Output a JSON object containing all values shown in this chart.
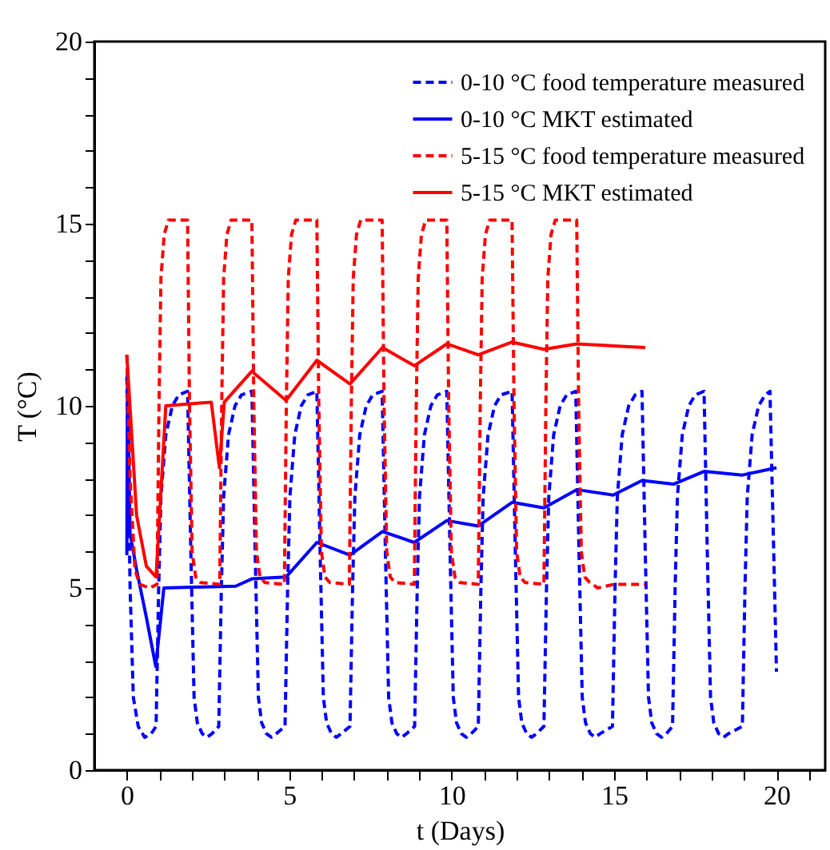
{
  "chart_data": {
    "type": "line",
    "xlabel": "t (Days)",
    "ylabel": "T (°C)",
    "xlim": [
      -1,
      21.5
    ],
    "ylim": [
      0,
      20
    ],
    "xticks": [
      0,
      {
        "value": 1,
        "label": null
      },
      {
        "value": 2,
        "label": null
      },
      {
        "value": 3,
        "label": null
      },
      {
        "value": 4,
        "label": null
      },
      5,
      {
        "value": 6,
        "label": null
      },
      {
        "value": 7,
        "label": null
      },
      {
        "value": 8,
        "label": null
      },
      {
        "value": 9,
        "label": null
      },
      10,
      {
        "value": 11,
        "label": null
      },
      {
        "value": 12,
        "label": null
      },
      {
        "value": 13,
        "label": null
      },
      {
        "value": 14,
        "label": null
      },
      15,
      {
        "value": 16,
        "label": null
      },
      {
        "value": 17,
        "label": null
      },
      {
        "value": 18,
        "label": null
      },
      {
        "value": 19,
        "label": null
      },
      20,
      {
        "value": 21,
        "label": null
      }
    ],
    "yticks": [
      0,
      {
        "value": 1,
        "label": null
      },
      {
        "value": 2,
        "label": null
      },
      {
        "value": 3,
        "label": null
      },
      {
        "value": 4,
        "label": null
      },
      5,
      {
        "value": 6,
        "label": null
      },
      {
        "value": 7,
        "label": null
      },
      {
        "value": 8,
        "label": null
      },
      {
        "value": 9,
        "label": null
      },
      10,
      {
        "value": 11,
        "label": null
      },
      {
        "value": 12,
        "label": null
      },
      {
        "value": 13,
        "label": null
      },
      {
        "value": 14,
        "label": null
      },
      15,
      {
        "value": 16,
        "label": null
      },
      {
        "value": 17,
        "label": null
      },
      {
        "value": 18,
        "label": null
      },
      {
        "value": 19,
        "label": null
      },
      20
    ],
    "legend": "top right",
    "grid": false,
    "marker": "none",
    "series": [
      {
        "name": "0-10 °C food temperature measured",
        "color": "#0000ff",
        "line_style": "dashed",
        "x": [
          0,
          0.1,
          0.2,
          0.35,
          0.55,
          0.75,
          0.9,
          0.98,
          1.05,
          1.2,
          1.4,
          1.6,
          1.87,
          1.97,
          2.07,
          2.17,
          2.32,
          2.47,
          2.62,
          2.83,
          2.91,
          2.98,
          3.13,
          3.33,
          3.53,
          3.85,
          3.95,
          4.05,
          4.15,
          4.3,
          4.45,
          4.6,
          4.87,
          4.95,
          5.02,
          5.17,
          5.37,
          5.57,
          5.85,
          5.95,
          6.05,
          6.15,
          6.3,
          6.45,
          6.6,
          6.87,
          6.95,
          7.02,
          7.17,
          7.37,
          7.57,
          7.86,
          7.96,
          8.06,
          8.16,
          8.31,
          8.46,
          8.61,
          8.86,
          8.94,
          9.01,
          9.16,
          9.36,
          9.56,
          9.85,
          9.95,
          10.05,
          10.15,
          10.3,
          10.45,
          10.6,
          10.82,
          10.9,
          10.97,
          11.12,
          11.32,
          11.52,
          11.86,
          11.96,
          12.06,
          12.16,
          12.31,
          12.46,
          12.61,
          12.84,
          12.92,
          12.99,
          13.14,
          13.34,
          13.54,
          13.82,
          13.92,
          14.02,
          14.12,
          14.27,
          14.42,
          14.57,
          14.95,
          15.03,
          15.1,
          15.25,
          15.45,
          15.65,
          15.86,
          15.96,
          16.06,
          16.16,
          16.31,
          16.46,
          16.61,
          16.8,
          16.88,
          16.95,
          17.1,
          17.3,
          17.5,
          17.77,
          17.87,
          17.97,
          18.07,
          18.22,
          18.37,
          18.52,
          18.95,
          19.03,
          19.1,
          19.25,
          19.45,
          19.65,
          19.8,
          20
        ],
        "values": [
          10.8,
          5,
          2,
          1.2,
          0.9,
          1,
          1.2,
          5,
          7.5,
          9.2,
          10,
          10.3,
          10.4,
          6,
          2,
          1.3,
          1,
          0.9,
          1,
          1.2,
          5,
          7.5,
          9.2,
          10,
          10.3,
          10.4,
          6,
          2,
          1.3,
          1,
          0.9,
          1,
          1.2,
          5,
          7.5,
          9.2,
          10,
          10.3,
          10.4,
          6,
          2,
          1.3,
          1,
          0.9,
          1,
          1.2,
          5,
          7.5,
          9.2,
          10,
          10.3,
          10.4,
          6,
          2,
          1.3,
          1,
          0.9,
          1,
          1.2,
          5,
          7.5,
          9.2,
          10,
          10.3,
          10.4,
          6,
          2,
          1.3,
          1,
          0.9,
          1,
          1.2,
          5,
          7.5,
          9.2,
          10,
          10.3,
          10.4,
          6,
          2,
          1.3,
          1,
          0.9,
          1,
          1.2,
          5,
          7.5,
          9.2,
          10,
          10.3,
          10.4,
          6,
          2,
          1.3,
          1,
          0.9,
          1,
          1.2,
          5,
          7.5,
          9.2,
          10,
          10.3,
          10.4,
          6,
          2,
          1.3,
          1,
          0.9,
          1,
          1.2,
          5,
          7.5,
          9.2,
          10,
          10.3,
          10.4,
          6,
          2,
          1.3,
          1,
          0.9,
          1,
          1.2,
          5,
          7.5,
          9.2,
          10,
          10.3,
          10.4,
          2.7
        ]
      },
      {
        "name": "0-10 °C MKT estimated",
        "color": "#0000ff",
        "line_style": "solid",
        "x": [
          0,
          0.02,
          0.1,
          0.3,
          0.6,
          0.89,
          1.14,
          2,
          3.35,
          3.85,
          4.9,
          5.85,
          6.87,
          7.87,
          8.85,
          9.85,
          10.82,
          11.86,
          12.84,
          13.85,
          14.97,
          15.86,
          16.83,
          17.77,
          18.95,
          20
        ],
        "values": [
          5.9,
          11,
          6.5,
          5.5,
          4.2,
          2.85,
          5,
          5.02,
          5.05,
          5.25,
          5.3,
          6.25,
          5.9,
          6.55,
          6.25,
          6.85,
          6.7,
          7.35,
          7.2,
          7.7,
          7.55,
          7.95,
          7.85,
          8.2,
          8.1,
          8.3
        ]
      },
      {
        "name": "5-15 °C food temperature measured",
        "color": "#ff0000",
        "line_style": "dashed",
        "x": [
          0,
          0.1,
          0.25,
          0.4,
          0.7,
          0.93,
          0.99,
          1.05,
          1.15,
          1.28,
          1.87,
          1.93,
          2.01,
          2.12,
          2.27,
          2.86,
          2.92,
          2.98,
          3.08,
          3.21,
          3.85,
          3.91,
          3.99,
          4.1,
          4.25,
          4.85,
          4.91,
          4.97,
          5.07,
          5.2,
          5.85,
          5.91,
          5.99,
          6.1,
          6.25,
          6.85,
          6.91,
          6.97,
          7.07,
          7.2,
          7.86,
          7.92,
          8,
          8.11,
          8.26,
          8.85,
          8.91,
          8.97,
          9.07,
          9.2,
          9.85,
          9.91,
          9.99,
          10.1,
          10.25,
          10.82,
          10.88,
          10.94,
          11.04,
          11.17,
          11.86,
          11.92,
          12,
          12.11,
          12.26,
          12.84,
          12.9,
          12.96,
          13.06,
          13.19,
          13.85,
          13.91,
          13.99,
          14.1,
          14.25,
          14.5,
          15,
          15.96
        ],
        "values": [
          11.4,
          8,
          5.5,
          5.1,
          5,
          5.1,
          10,
          13.5,
          14.7,
          15.1,
          15.1,
          10,
          6,
          5.3,
          5.15,
          5.1,
          10,
          13.5,
          14.7,
          15.1,
          15.1,
          10,
          6,
          5.3,
          5.15,
          5.1,
          10,
          13.5,
          14.7,
          15.1,
          15.1,
          10,
          6,
          5.3,
          5.15,
          5.1,
          10,
          13.5,
          14.7,
          15.1,
          15.1,
          10,
          6,
          5.3,
          5.15,
          5.1,
          10,
          13.5,
          14.7,
          15.1,
          15.1,
          10,
          6,
          5.3,
          5.15,
          5.1,
          10,
          13.5,
          14.7,
          15.1,
          15.1,
          10,
          6,
          5.3,
          5.15,
          5.1,
          10,
          13.5,
          14.7,
          15.1,
          15.1,
          10,
          6,
          5.3,
          5.15,
          5,
          5.1,
          5.1
        ]
      },
      {
        "name": "5-15 °C MKT estimated",
        "color": "#ff0000",
        "line_style": "solid",
        "x": [
          0,
          0.3,
          0.6,
          0.9,
          1.2,
          2.6,
          2.85,
          3,
          3.85,
          4.9,
          5.85,
          6.87,
          7.87,
          8.85,
          9.85,
          10.82,
          11.86,
          12.84,
          13.85,
          15.96
        ],
        "values": [
          11.4,
          7,
          5.6,
          5.3,
          10,
          10.1,
          8.3,
          10.1,
          10.95,
          10.15,
          11.25,
          10.6,
          11.6,
          11.1,
          11.7,
          11.4,
          11.75,
          11.55,
          11.7,
          11.6
        ]
      }
    ]
  }
}
